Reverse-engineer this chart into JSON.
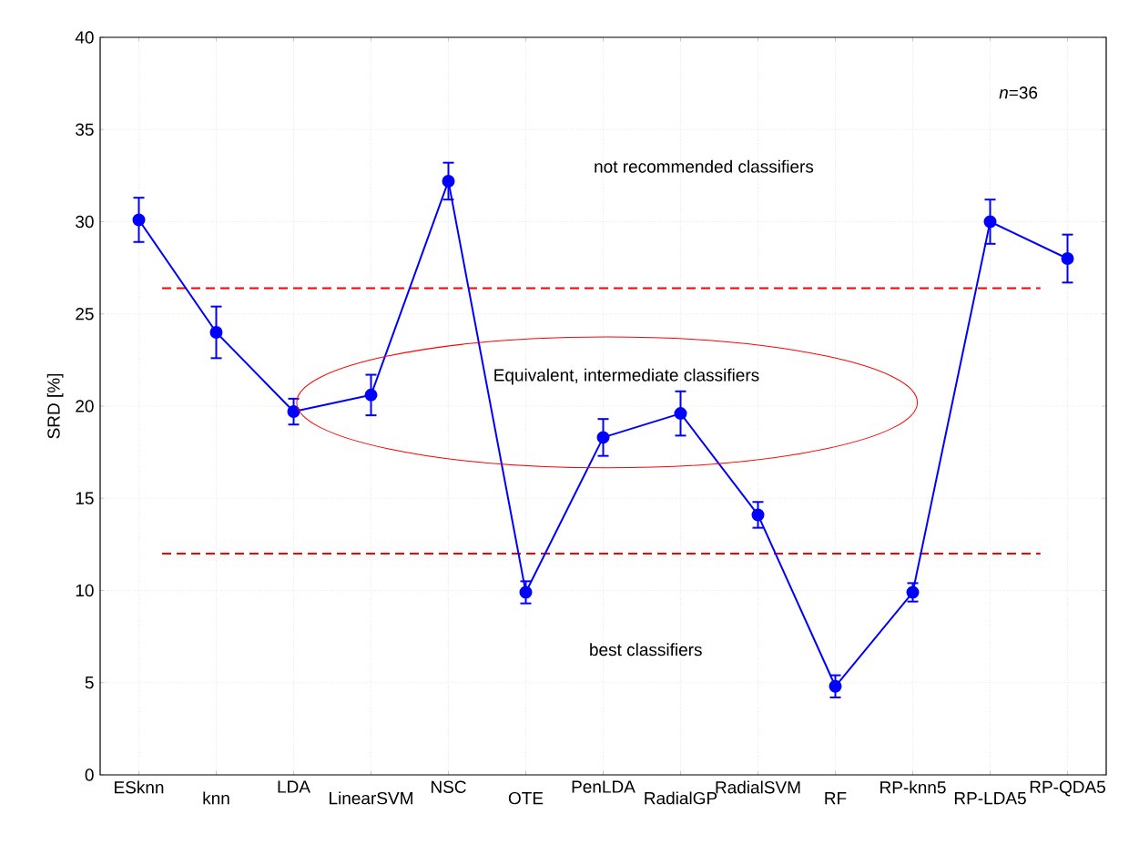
{
  "chart_data": {
    "type": "line",
    "ylabel": "SRD [%]",
    "categories": [
      "ESknn",
      "knn",
      "LDA",
      "LinearSVM",
      "NSC",
      "OTE",
      "PenLDA",
      "RadialGP",
      "RadialSVM",
      "RF",
      "RP-knn5",
      "RP-LDA5",
      "RP-QDA5"
    ],
    "series": [
      {
        "color": "#0000ff",
        "values": [
          30.1,
          24.0,
          19.7,
          20.6,
          32.2,
          9.9,
          18.3,
          19.6,
          14.1,
          4.8,
          9.9,
          30.0,
          28.0
        ],
        "errors": [
          1.2,
          1.4,
          0.7,
          1.1,
          1.0,
          0.6,
          1.0,
          1.2,
          0.7,
          0.6,
          0.5,
          1.2,
          1.3
        ]
      }
    ],
    "ylim": [
      0,
      40
    ],
    "yticks": [
      0,
      5,
      10,
      15,
      20,
      25,
      30,
      35,
      40
    ],
    "grid": true,
    "marker": "circle",
    "line_style": "solid",
    "ref_lines": [
      {
        "axis": "y",
        "value": 26.4,
        "color": "#ff0000",
        "line_style": "dashed"
      },
      {
        "axis": "y",
        "value": 12.0,
        "color": "#ff0000",
        "line_style": "dashed"
      }
    ],
    "annotations": [
      "*n*=36",
      "not recommended classifiers",
      "Equivalent, intermediate classifiers",
      "best classifiers"
    ]
  }
}
